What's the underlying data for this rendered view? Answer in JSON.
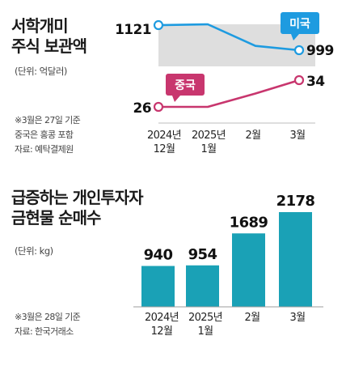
{
  "colors": {
    "us": "#1e9be0",
    "china": "#c8366e",
    "bar": "#1aa1b6",
    "band": "#dedede"
  },
  "chart_data": [
    {
      "type": "line",
      "title": "서학개미\n주식 보관액",
      "unit_label": "(단위: 억달러)",
      "notes": [
        "※3월은 27일 기준",
        "중국은 홍콩 포함",
        "자료: 예탁결제원"
      ],
      "x": [
        "2024년\n12월",
        "2025년\n1월",
        "2월",
        "3월"
      ],
      "series": [
        {
          "name": "미국",
          "values": [
            1121,
            1125,
            1020,
            999
          ],
          "labels": {
            "first": "1121",
            "last": "999"
          }
        },
        {
          "name": "중국",
          "values": [
            26,
            26,
            30,
            34
          ],
          "labels": {
            "first": "26",
            "last": "34"
          }
        }
      ]
    },
    {
      "type": "bar",
      "title": "급증하는 개인투자자\n금현물 순매수",
      "unit_label": "(단위: kg)",
      "notes": [
        "※3월은 28일 기준",
        "자료: 한국거래소"
      ],
      "categories": [
        "2024년\n12월",
        "2025년\n1월",
        "2월",
        "3월"
      ],
      "values": [
        940,
        954,
        1689,
        2178
      ],
      "ylim": [
        0,
        2400
      ]
    }
  ]
}
